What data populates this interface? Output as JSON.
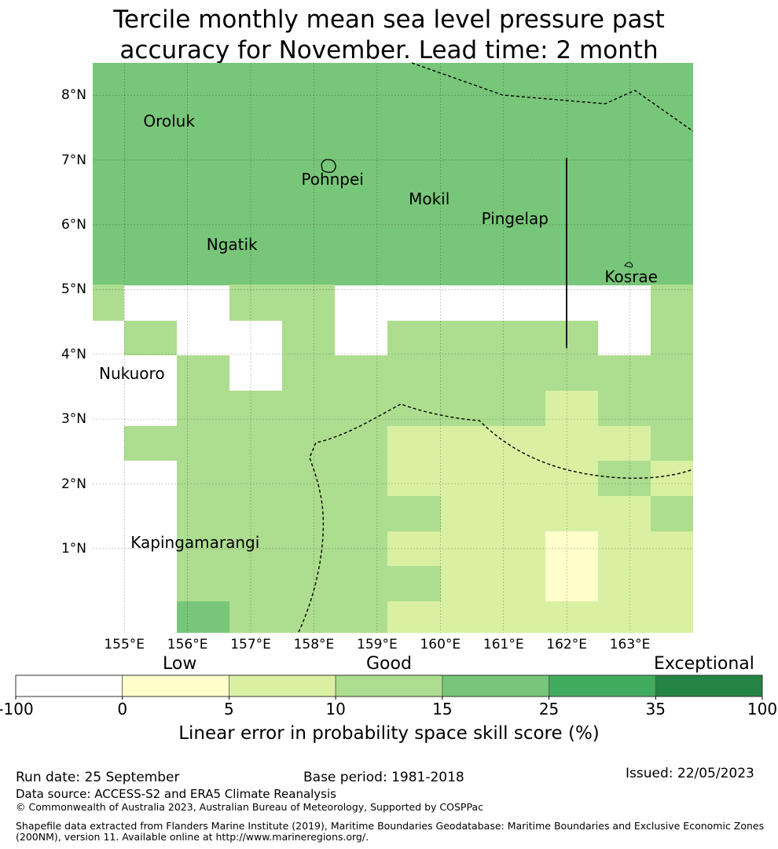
{
  "title": {
    "line1": "Tercile monthly mean sea level pressure past",
    "line2": "accuracy for November. Lead time: 2 month"
  },
  "map": {
    "lon_range": [
      154.5,
      164.0
    ],
    "lat_range": [
      -0.3,
      8.5
    ],
    "lon_ticks": [
      {
        "value": 155,
        "label": "155°E"
      },
      {
        "value": 156,
        "label": "156°E"
      },
      {
        "value": 157,
        "label": "157°E"
      },
      {
        "value": 158,
        "label": "158°E"
      },
      {
        "value": 159,
        "label": "159°E"
      },
      {
        "value": 160,
        "label": "160°E"
      },
      {
        "value": 161,
        "label": "161°E"
      },
      {
        "value": 162,
        "label": "162°E"
      },
      {
        "value": 163,
        "label": "163°E"
      }
    ],
    "lat_ticks": [
      {
        "value": 8,
        "label": "8°N"
      },
      {
        "value": 7,
        "label": "7°N"
      },
      {
        "value": 6,
        "label": "6°N"
      },
      {
        "value": 5,
        "label": "5°N"
      },
      {
        "value": 4,
        "label": "4°N"
      },
      {
        "value": 3,
        "label": "3°N"
      },
      {
        "value": 2,
        "label": "2°N"
      },
      {
        "value": 1,
        "label": "1°N"
      }
    ],
    "places": [
      {
        "name": "Oroluk",
        "lon": 155.3,
        "lat": 7.6
      },
      {
        "name": "Pohnpei",
        "lon": 157.8,
        "lat": 6.7
      },
      {
        "name": "Mokil",
        "lon": 159.5,
        "lat": 6.4
      },
      {
        "name": "Pingelap",
        "lon": 160.65,
        "lat": 6.1
      },
      {
        "name": "Ngatik",
        "lon": 156.3,
        "lat": 5.7
      },
      {
        "name": "Kosrae",
        "lon": 162.6,
        "lat": 5.2
      },
      {
        "name": "Nukuoro",
        "lon": 154.6,
        "lat": 3.7
      },
      {
        "name": "Kapingamarangi",
        "lon": 155.1,
        "lat": 1.1
      }
    ],
    "colors": {
      "c0": "#ffffcc",
      "c1": "#d9f0a3",
      "c2": "#addd8e",
      "c3": "#78c679",
      "c4": "#41ab5d",
      "c5": "#238443",
      "neg": "#ffffff"
    }
  },
  "colorbar": {
    "categories": [
      {
        "label": "Low"
      },
      {
        "label": "Good"
      },
      {
        "label": "Exceptional"
      }
    ],
    "ticks": [
      "-100",
      "0",
      "5",
      "10",
      "15",
      "25",
      "35",
      "100"
    ],
    "colors": [
      "#ffffff",
      "#ffffcc",
      "#d9f0a3",
      "#addd8e",
      "#78c679",
      "#41ab5d",
      "#238443"
    ],
    "title": "Linear error in probability space skill score (%)"
  },
  "footer": {
    "run_date": "Run date: 25 September",
    "base_period": "Base period: 1981-2018",
    "issued": "Issued: 22/05/2023",
    "data_source": "Data source: ACCESS-S2 and ERA5 Climate Reanalysis",
    "copyright": "© Commonwealth of Australia 2023, Australian Bureau of Meteorology, Supported by COSPPac",
    "shapefile_line1": "Shapefile data extracted from Flanders Marine Institute (2019), Maritime Boundaries Geodatabase: Maritime Boundaries and Exclusive Economic Zones",
    "shapefile_line2": "(200NM), version 11. Available online at http://www.marineregions.org/."
  }
}
